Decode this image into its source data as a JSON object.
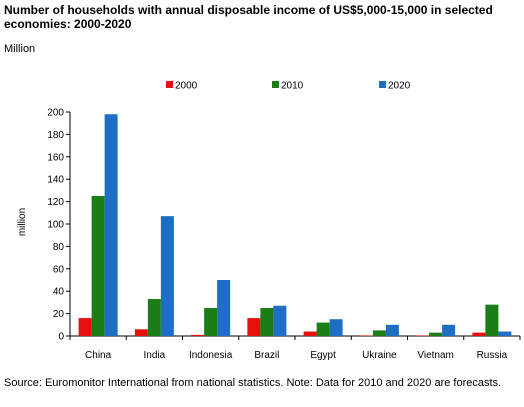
{
  "title": "Number of households with annual disposable income of US$5,000-15,000 in selected economies: 2000-2020",
  "unit_label": "Million",
  "source": "Source: Euromonitor International from national statistics. Note: Data for 2010 and 2020 are forecasts.",
  "chart_data": {
    "type": "bar",
    "title": "Number of households with annual disposable income of US$5,000-15,000 in selected economies: 2000-2020",
    "xlabel": "",
    "ylabel": "million",
    "ylim": [
      0,
      200
    ],
    "yticks": [
      0,
      20,
      40,
      60,
      80,
      100,
      120,
      140,
      160,
      180,
      200
    ],
    "grid": false,
    "legend_position": "top",
    "categories": [
      "China",
      "India",
      "Indonesia",
      "Brazil",
      "Egypt",
      "Ukraine",
      "Vietnam",
      "Russia"
    ],
    "series": [
      {
        "name": "2000",
        "color": "#e8100e",
        "values": [
          16,
          6,
          1,
          16,
          4,
          0.5,
          0.5,
          3
        ]
      },
      {
        "name": "2010",
        "color": "#1a7d15",
        "values": [
          125,
          33,
          25,
          25,
          12,
          5,
          3,
          28
        ]
      },
      {
        "name": "2020",
        "color": "#1e6fc4",
        "values": [
          198,
          107,
          50,
          27,
          15,
          10,
          10,
          4
        ]
      }
    ]
  }
}
